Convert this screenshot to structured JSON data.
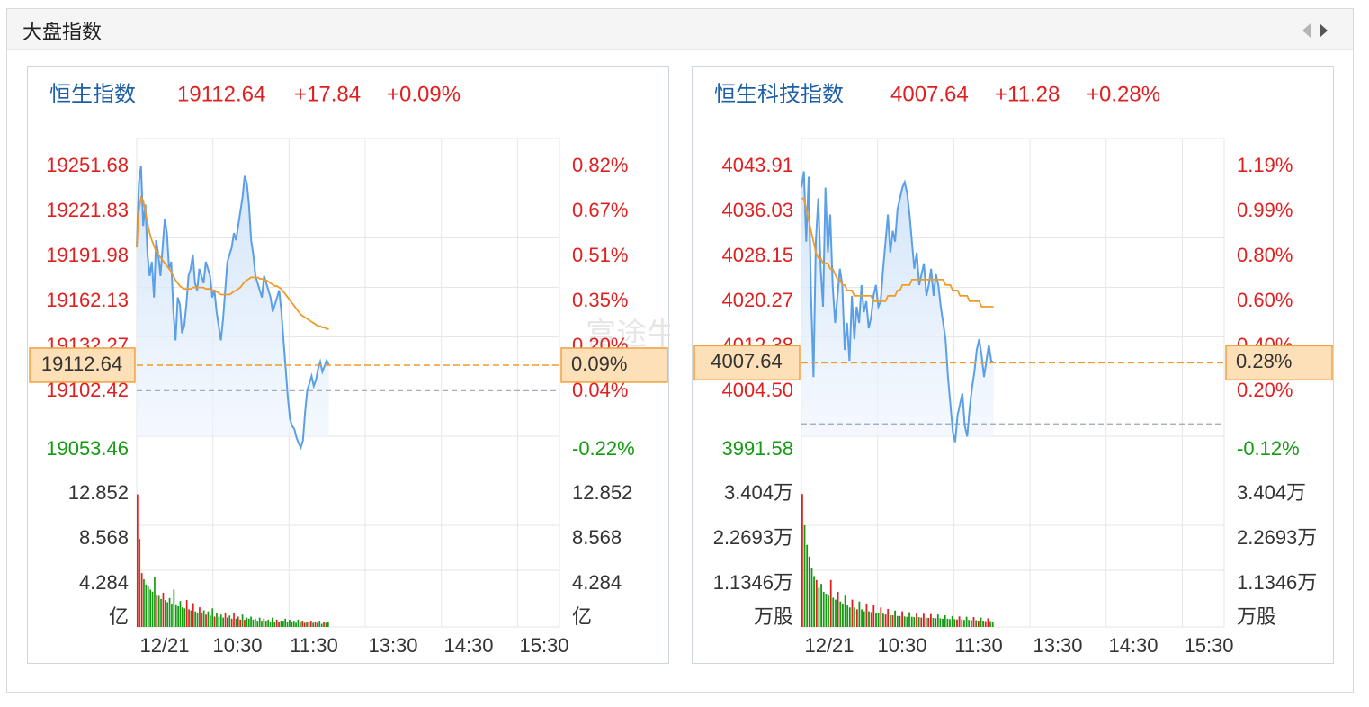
{
  "header": {
    "title": "大盘指数",
    "prev_icon": "caret-left-icon",
    "next_icon": "caret-right-icon"
  },
  "watermark": "富途牛牛",
  "colors": {
    "up": "#e02020",
    "down": "#159b12",
    "title": "#1d5fa8",
    "price_line": "#5b9fe6",
    "avg_line": "#f09a2a",
    "marker_fill": "#fde0b8",
    "marker_stroke": "#f0a040",
    "grid": "#e6e6e6",
    "axis_text": "#333333"
  },
  "chart_data": [
    {
      "type": "line",
      "title_name": "恒生指数",
      "last": "19112.64",
      "change": "+17.84",
      "change_pct": "+0.09%",
      "price_ticks_left": [
        "19251.68",
        "19221.83",
        "19191.98",
        "19162.13",
        "19132.27",
        "19102.42",
        "19053.46"
      ],
      "pct_ticks_right": [
        "0.82%",
        "0.67%",
        "0.51%",
        "0.35%",
        "0.20%",
        "0.04%",
        "-0.22%"
      ],
      "ylim": [
        19053.46,
        19251.68
      ],
      "prev_close": 19094.8,
      "current_value": 19112.64,
      "current_label": "19112.64",
      "current_pct_label": "0.09%",
      "x_tick_labels": [
        "12/21",
        "10:30",
        "11:30",
        "13:30",
        "14:30",
        "15:30"
      ],
      "x_minutes_end": 150,
      "session_minutes": 330,
      "price_series": [
        19195,
        19240,
        19252,
        19210,
        19225,
        19190,
        19175,
        19185,
        19160,
        19200,
        19190,
        19175,
        19195,
        19215,
        19205,
        19180,
        19185,
        19150,
        19130,
        19160,
        19155,
        19135,
        19140,
        19155,
        19175,
        19180,
        19190,
        19170,
        19165,
        19180,
        19175,
        19170,
        19185,
        19180,
        19175,
        19160,
        19165,
        19150,
        19140,
        19130,
        19145,
        19165,
        19185,
        19190,
        19195,
        19205,
        19200,
        19210,
        19220,
        19230,
        19245,
        19240,
        19225,
        19200,
        19190,
        19175,
        19170,
        19165,
        19160,
        19175,
        19170,
        19165,
        19160,
        19150,
        19155,
        19160,
        19165,
        19150,
        19130,
        19110,
        19090,
        19075,
        19070,
        19068,
        19062,
        19058,
        19055,
        19060,
        19080,
        19095,
        19100,
        19105,
        19098,
        19102,
        19110,
        19115,
        19108,
        19112,
        19116,
        19112.64
      ],
      "avg_series": [
        19195,
        19220,
        19230,
        19228,
        19220,
        19212,
        19205,
        19200,
        19196,
        19192,
        19190,
        19188,
        19186,
        19184,
        19182,
        19180,
        19178,
        19175,
        19172,
        19170,
        19168,
        19167,
        19166,
        19166,
        19166,
        19166,
        19167,
        19167,
        19167,
        19167,
        19167,
        19167,
        19166,
        19166,
        19166,
        19165,
        19165,
        19164,
        19163,
        19162,
        19162,
        19162,
        19162,
        19162,
        19163,
        19164,
        19165,
        19166,
        19167,
        19169,
        19171,
        19172,
        19173,
        19174,
        19174,
        19174,
        19174,
        19173,
        19173,
        19172,
        19172,
        19171,
        19170,
        19169,
        19168,
        19168,
        19167,
        19166,
        19164,
        19162,
        19160,
        19158,
        19156,
        19154,
        19152,
        19150,
        19148,
        19147,
        19146,
        19145,
        19144,
        19143,
        19142,
        19141,
        19140,
        19140,
        19139,
        19139,
        19138,
        19138
      ],
      "volume_ticks_left": [
        "12.852",
        "8.568",
        "4.284",
        "亿"
      ],
      "volume_ticks_right": [
        "12.852",
        "8.568",
        "4.284",
        "亿"
      ],
      "volume_max": 12.852,
      "volume_series": [
        12.8,
        8.5,
        5.2,
        4.6,
        4.1,
        3.9,
        3.6,
        3.4,
        4.8,
        3.1,
        3.0,
        2.7,
        3.3,
        2.6,
        2.4,
        2.8,
        2.2,
        3.6,
        2.1,
        2.0,
        2.5,
        1.9,
        1.8,
        2.6,
        1.7,
        1.6,
        2.3,
        1.5,
        1.4,
        1.9,
        1.3,
        1.6,
        1.2,
        1.5,
        1.1,
        1.8,
        1.0,
        1.3,
        1.0,
        1.2,
        0.9,
        1.4,
        0.9,
        1.1,
        0.8,
        1.3,
        0.8,
        1.0,
        0.7,
        1.2,
        0.7,
        0.9,
        0.8,
        1.0,
        0.7,
        0.8,
        0.6,
        0.9,
        0.6,
        0.8,
        0.6,
        0.7,
        0.5,
        0.9,
        0.5,
        0.7,
        0.5,
        0.6,
        0.6,
        0.8,
        0.5,
        0.7,
        0.5,
        0.6,
        0.4,
        0.7,
        0.5,
        0.6,
        0.4,
        0.5,
        0.5,
        0.6,
        0.4,
        0.5,
        0.4,
        0.6,
        0.3,
        0.5,
        0.4,
        0.5
      ]
    },
    {
      "type": "line",
      "title_name": "恒生科技指数",
      "last": "4007.64",
      "change": "+11.28",
      "change_pct": "+0.28%",
      "price_ticks_left": [
        "4043.91",
        "4036.03",
        "4028.15",
        "4020.27",
        "4012.38",
        "4004.50",
        "3991.58"
      ],
      "pct_ticks_right": [
        "1.19%",
        "0.99%",
        "0.80%",
        "0.60%",
        "0.40%",
        "0.20%",
        "-0.12%"
      ],
      "ylim": [
        3991.58,
        4043.91
      ],
      "prev_close": 3996.36,
      "current_value": 4007.64,
      "current_label": "4007.64",
      "current_pct_label": "0.28%",
      "x_tick_labels": [
        "12/21",
        "10:30",
        "11:30",
        "13:30",
        "14:30",
        "15:30"
      ],
      "x_minutes_end": 150,
      "session_minutes": 330,
      "price_series": [
        4040,
        4043,
        4030,
        4042,
        4020,
        4005,
        4030,
        4038,
        4025,
        4018,
        4040,
        4028,
        4035,
        4022,
        4015,
        4020,
        4025,
        4022,
        4010,
        4015,
        4008,
        4020,
        4012,
        4018,
        4015,
        4022,
        4017,
        4019,
        4014,
        4016,
        4020,
        4022,
        4018,
        4019,
        4025,
        4030,
        4035,
        4028,
        4032,
        4030,
        4036,
        4038,
        4040,
        4041,
        4039,
        4035,
        4030,
        4025,
        4028,
        4022,
        4024,
        4026,
        4020,
        4022,
        4025,
        4020,
        4024,
        4022,
        4018,
        4015,
        4012,
        4005,
        4000,
        3995,
        3993,
        3998,
        4000,
        4002,
        3996,
        3994,
        3999,
        4003,
        4006,
        4010,
        4012,
        4009,
        4005,
        4008,
        4011,
        4008,
        4007.64
      ],
      "avg_series": [
        4038,
        4038,
        4036,
        4034,
        4032,
        4030,
        4028,
        4027,
        4027,
        4026,
        4026,
        4026,
        4025,
        4025,
        4024,
        4023,
        4023,
        4022,
        4022,
        4021,
        4021,
        4021,
        4020,
        4020,
        4020,
        4020,
        4020,
        4020,
        4020,
        4020,
        4019,
        4019,
        4019,
        4019,
        4019,
        4019,
        4020,
        4020,
        4020,
        4020,
        4021,
        4021,
        4022,
        4022,
        4022,
        4022,
        4023,
        4023,
        4023,
        4023,
        4023,
        4023,
        4023,
        4023,
        4023,
        4023,
        4023,
        4023,
        4023,
        4023,
        4022,
        4022,
        4022,
        4021,
        4021,
        4021,
        4020,
        4020,
        4020,
        4020,
        4019,
        4019,
        4019,
        4019,
        4019,
        4018,
        4018,
        4018,
        4018,
        4018,
        4018
      ],
      "volume_ticks_left": [
        "3.404万",
        "2.2693万",
        "1.1346万",
        "万股"
      ],
      "volume_ticks_right": [
        "3.404万",
        "2.2693万",
        "1.1346万",
        "万股"
      ],
      "volume_max": 3.404,
      "volume_series": [
        3.4,
        2.6,
        2.1,
        1.8,
        1.5,
        1.3,
        1.2,
        1.0,
        1.1,
        0.9,
        0.85,
        0.8,
        1.2,
        0.75,
        0.7,
        0.9,
        0.65,
        0.6,
        0.8,
        0.55,
        0.5,
        0.7,
        0.5,
        0.45,
        0.65,
        0.45,
        0.4,
        0.6,
        0.4,
        0.38,
        0.55,
        0.36,
        0.35,
        0.5,
        0.34,
        0.32,
        0.46,
        0.3,
        0.3,
        0.42,
        0.28,
        0.28,
        0.4,
        0.27,
        0.26,
        0.38,
        0.26,
        0.25,
        0.36,
        0.25,
        0.24,
        0.34,
        0.24,
        0.23,
        0.33,
        0.23,
        0.22,
        0.32,
        0.22,
        0.21,
        0.3,
        0.21,
        0.2,
        0.28,
        0.2,
        0.19,
        0.27,
        0.19,
        0.18,
        0.26,
        0.18,
        0.17,
        0.25,
        0.17,
        0.16,
        0.24,
        0.16,
        0.15,
        0.22,
        0.15,
        0.14
      ]
    }
  ]
}
